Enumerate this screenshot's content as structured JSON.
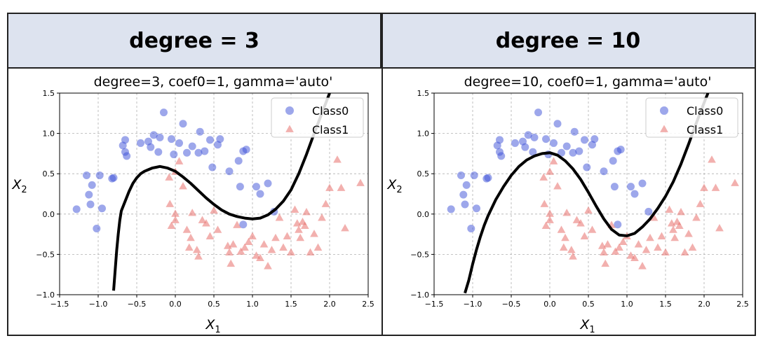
{
  "panels": [
    {
      "header": "degree = 3"
    },
    {
      "header": "degree = 10"
    }
  ],
  "chart_data": [
    {
      "type": "scatter",
      "title": "degree=3, coef0=1, gamma='auto'",
      "xlabel": "X",
      "xlabel_sub": "1",
      "ylabel": "X",
      "ylabel_sub": "2",
      "xlim": [
        -1.5,
        2.5
      ],
      "ylim": [
        -1.0,
        1.5
      ],
      "xticks": [
        -1.5,
        -1.0,
        -0.5,
        0.0,
        0.5,
        1.0,
        1.5,
        2.0,
        2.5
      ],
      "xtick_labels": [
        "−1.5",
        "−1.0",
        "−0.5",
        "0.0",
        "0.5",
        "1.0",
        "1.5",
        "2.0",
        "2.5"
      ],
      "yticks": [
        -1.0,
        -0.5,
        0.0,
        0.5,
        1.0,
        1.5
      ],
      "ytick_labels": [
        "−1.0",
        "−0.5",
        "0.0",
        "0.5",
        "1.0",
        "1.5"
      ],
      "grid": true,
      "legend_position": "top-right",
      "series": [
        {
          "name": "Class0",
          "marker": "circle",
          "color": "#3b4fd8",
          "x": [
            -1.28,
            -1.15,
            -1.12,
            -1.1,
            -1.08,
            -1.02,
            -0.98,
            -0.95,
            -0.8,
            -0.82,
            -0.68,
            -0.65,
            -0.65,
            -0.63,
            -0.45,
            -0.35,
            -0.32,
            -0.28,
            -0.22,
            -0.2,
            -0.15,
            -0.05,
            -0.02,
            0.05,
            0.1,
            0.15,
            0.22,
            0.3,
            0.32,
            0.38,
            0.45,
            0.48,
            0.55,
            0.58,
            0.7,
            0.82,
            0.84,
            0.88,
            0.92,
            0.88,
            1.05,
            1.1,
            1.2,
            1.28
          ],
          "y": [
            0.06,
            0.48,
            0.24,
            0.12,
            0.36,
            -0.18,
            0.48,
            0.07,
            0.45,
            0.44,
            0.85,
            0.77,
            0.92,
            0.72,
            0.88,
            0.9,
            0.83,
            0.98,
            0.77,
            0.95,
            1.26,
            0.93,
            0.74,
            0.88,
            1.12,
            0.76,
            0.84,
            0.76,
            1.02,
            0.78,
            0.92,
            0.58,
            0.86,
            0.93,
            0.53,
            0.66,
            0.34,
            0.78,
            0.8,
            -0.13,
            0.34,
            0.25,
            0.38,
            0.03
          ]
        },
        {
          "name": "Class1",
          "marker": "triangle",
          "color": "#e8706c",
          "x": [
            -0.08,
            0.0,
            0.05,
            0.1,
            -0.07,
            -0.05,
            0.0,
            0.0,
            0.15,
            0.2,
            0.18,
            0.22,
            0.28,
            0.3,
            0.35,
            0.4,
            0.45,
            0.5,
            0.55,
            0.68,
            0.7,
            0.72,
            0.75,
            0.8,
            0.85,
            0.9,
            0.95,
            1.0,
            1.05,
            1.1,
            1.15,
            1.2,
            1.25,
            1.3,
            1.35,
            1.4,
            1.45,
            1.5,
            1.55,
            1.58,
            1.6,
            1.62,
            1.65,
            1.68,
            1.7,
            1.75,
            1.8,
            1.85,
            1.9,
            1.95,
            2.0,
            2.1,
            2.15,
            2.2,
            2.4
          ],
          "y": [
            0.45,
            0.52,
            0.65,
            0.34,
            0.12,
            -0.15,
            -0.08,
            0.0,
            -0.2,
            -0.3,
            -0.42,
            0.01,
            -0.45,
            -0.53,
            -0.08,
            -0.12,
            -0.28,
            0.04,
            -0.2,
            -0.4,
            -0.48,
            -0.62,
            -0.38,
            -0.14,
            -0.47,
            -0.42,
            -0.35,
            -0.28,
            -0.52,
            -0.55,
            -0.38,
            -0.65,
            -0.45,
            -0.3,
            -0.05,
            -0.42,
            -0.28,
            -0.48,
            0.05,
            -0.12,
            -0.2,
            -0.3,
            -0.1,
            -0.15,
            0.02,
            -0.48,
            -0.25,
            -0.42,
            -0.05,
            0.12,
            0.32,
            0.67,
            0.32,
            -0.18,
            0.38
          ]
        }
      ],
      "decision_boundary": {
        "x": [
          -0.8,
          -0.78,
          -0.76,
          -0.74,
          -0.72,
          -0.7,
          -0.65,
          -0.6,
          -0.55,
          -0.5,
          -0.45,
          -0.4,
          -0.35,
          -0.3,
          -0.25,
          -0.2,
          -0.1,
          0.0,
          0.1,
          0.2,
          0.3,
          0.4,
          0.5,
          0.6,
          0.7,
          0.8,
          0.9,
          1.0,
          1.1,
          1.2,
          1.3,
          1.4,
          1.5,
          1.6,
          1.7,
          1.8,
          1.9,
          2.0
        ],
        "y": [
          -0.95,
          -0.7,
          -0.45,
          -0.25,
          -0.08,
          0.04,
          0.16,
          0.28,
          0.38,
          0.45,
          0.5,
          0.53,
          0.55,
          0.57,
          0.58,
          0.59,
          0.57,
          0.53,
          0.46,
          0.38,
          0.29,
          0.2,
          0.12,
          0.05,
          0.0,
          -0.03,
          -0.05,
          -0.06,
          -0.05,
          -0.01,
          0.06,
          0.16,
          0.3,
          0.5,
          0.74,
          1.0,
          1.25,
          1.5
        ]
      }
    },
    {
      "type": "scatter",
      "title": "degree=10, coef0=1, gamma='auto'",
      "xlabel": "X",
      "xlabel_sub": "1",
      "ylabel": "X",
      "ylabel_sub": "2",
      "xlim": [
        -1.5,
        2.5
      ],
      "ylim": [
        -1.0,
        1.5
      ],
      "xticks": [
        -1.5,
        -1.0,
        -0.5,
        0.0,
        0.5,
        1.0,
        1.5,
        2.0,
        2.5
      ],
      "xtick_labels": [
        "−1.5",
        "−1.0",
        "−0.5",
        "0.0",
        "0.5",
        "1.0",
        "1.5",
        "2.0",
        "2.5"
      ],
      "yticks": [
        -1.0,
        -0.5,
        0.0,
        0.5,
        1.0,
        1.5
      ],
      "ytick_labels": [
        "−1.0",
        "−0.5",
        "0.0",
        "0.5",
        "1.0",
        "1.5"
      ],
      "grid": true,
      "legend_position": "top-right",
      "series": [
        {
          "name": "Class0",
          "marker": "circle",
          "color": "#3b4fd8",
          "x": [
            -1.28,
            -1.15,
            -1.12,
            -1.1,
            -1.08,
            -1.02,
            -0.98,
            -0.95,
            -0.8,
            -0.82,
            -0.68,
            -0.65,
            -0.65,
            -0.63,
            -0.45,
            -0.35,
            -0.32,
            -0.28,
            -0.22,
            -0.2,
            -0.15,
            -0.05,
            -0.02,
            0.05,
            0.1,
            0.15,
            0.22,
            0.3,
            0.32,
            0.38,
            0.45,
            0.48,
            0.55,
            0.58,
            0.7,
            0.82,
            0.84,
            0.88,
            0.92,
            0.88,
            1.05,
            1.1,
            1.2,
            1.28
          ],
          "y": [
            0.06,
            0.48,
            0.24,
            0.12,
            0.36,
            -0.18,
            0.48,
            0.07,
            0.45,
            0.44,
            0.85,
            0.77,
            0.92,
            0.72,
            0.88,
            0.9,
            0.83,
            0.98,
            0.77,
            0.95,
            1.26,
            0.93,
            0.74,
            0.88,
            1.12,
            0.76,
            0.84,
            0.76,
            1.02,
            0.78,
            0.92,
            0.58,
            0.86,
            0.93,
            0.53,
            0.66,
            0.34,
            0.78,
            0.8,
            -0.13,
            0.34,
            0.25,
            0.38,
            0.03
          ]
        },
        {
          "name": "Class1",
          "marker": "triangle",
          "color": "#e8706c",
          "x": [
            -0.08,
            0.0,
            0.05,
            0.1,
            -0.07,
            -0.05,
            0.0,
            0.0,
            0.15,
            0.2,
            0.18,
            0.22,
            0.28,
            0.3,
            0.35,
            0.4,
            0.45,
            0.5,
            0.55,
            0.68,
            0.7,
            0.72,
            0.75,
            0.8,
            0.85,
            0.9,
            0.95,
            1.0,
            1.05,
            1.1,
            1.15,
            1.2,
            1.25,
            1.3,
            1.35,
            1.4,
            1.45,
            1.5,
            1.55,
            1.58,
            1.6,
            1.62,
            1.65,
            1.68,
            1.7,
            1.75,
            1.8,
            1.85,
            1.9,
            1.95,
            2.0,
            2.1,
            2.15,
            2.2,
            2.4
          ],
          "y": [
            0.45,
            0.52,
            0.65,
            0.34,
            0.12,
            -0.15,
            -0.08,
            0.0,
            -0.2,
            -0.3,
            -0.42,
            0.01,
            -0.45,
            -0.53,
            -0.08,
            -0.12,
            -0.28,
            0.04,
            -0.2,
            -0.4,
            -0.48,
            -0.62,
            -0.38,
            -0.14,
            -0.47,
            -0.42,
            -0.35,
            -0.28,
            -0.52,
            -0.55,
            -0.38,
            -0.65,
            -0.45,
            -0.3,
            -0.05,
            -0.42,
            -0.28,
            -0.48,
            0.05,
            -0.12,
            -0.2,
            -0.3,
            -0.1,
            -0.15,
            0.02,
            -0.48,
            -0.25,
            -0.42,
            -0.05,
            0.12,
            0.32,
            0.67,
            0.32,
            -0.18,
            0.38
          ]
        }
      ],
      "decision_boundary": {
        "x": [
          -1.1,
          -1.05,
          -1.0,
          -0.95,
          -0.9,
          -0.85,
          -0.8,
          -0.7,
          -0.6,
          -0.5,
          -0.4,
          -0.3,
          -0.2,
          -0.1,
          0.0,
          0.1,
          0.2,
          0.3,
          0.4,
          0.5,
          0.6,
          0.7,
          0.8,
          0.9,
          1.0,
          1.1,
          1.2,
          1.3,
          1.4,
          1.5,
          1.6,
          1.7,
          1.8,
          1.9,
          2.0,
          2.05
        ],
        "y": [
          -0.98,
          -0.82,
          -0.62,
          -0.44,
          -0.28,
          -0.14,
          -0.02,
          0.18,
          0.34,
          0.48,
          0.59,
          0.67,
          0.72,
          0.75,
          0.76,
          0.73,
          0.66,
          0.56,
          0.43,
          0.27,
          0.1,
          -0.06,
          -0.19,
          -0.26,
          -0.27,
          -0.24,
          -0.16,
          -0.06,
          0.07,
          0.22,
          0.4,
          0.62,
          0.87,
          1.13,
          1.38,
          1.5
        ]
      }
    }
  ]
}
